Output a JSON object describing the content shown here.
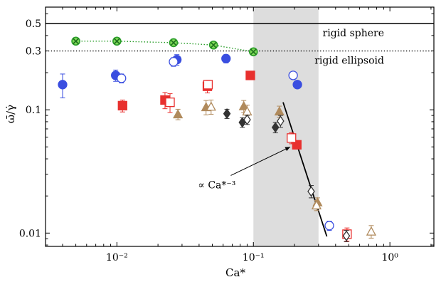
{
  "chart_data": {
    "type": "scatter",
    "title": "",
    "xlabel": "Ca*",
    "ylabel": "ω̄/γ̇",
    "xscale": "log",
    "yscale": "log",
    "xlim": [
      0.003,
      2.1
    ],
    "ylim": [
      0.0078,
      0.68
    ],
    "grid": false,
    "legend": "none",
    "x_ticks": [
      {
        "value": 0.01,
        "label": "10⁻²"
      },
      {
        "value": 0.1,
        "label": "10⁻¹"
      },
      {
        "value": 1,
        "label": "10⁰"
      }
    ],
    "y_ticks": [
      {
        "value": 0.5,
        "label": "0.5"
      },
      {
        "value": 0.3,
        "label": "0.3"
      },
      {
        "value": 0.1,
        "label": "0.1"
      },
      {
        "value": 0.01,
        "label": "0.01"
      }
    ],
    "shaded_region": {
      "x": [
        0.1,
        0.3
      ],
      "color": "#dddddd"
    },
    "reference_lines": [
      {
        "label": "rigid sphere",
        "y": 0.5,
        "style": "solid"
      },
      {
        "label": "rigid ellipsoid",
        "y": 0.3,
        "style": "dotted"
      }
    ],
    "power_law": {
      "x": [
        0.165,
        0.345
      ],
      "y": [
        0.115,
        0.0094
      ]
    },
    "annotation": {
      "text": "∝ Ca*⁻³",
      "arrow_from": [
        0.062,
        0.025
      ],
      "arrow_to": [
        0.2,
        0.052
      ]
    },
    "series": [
      {
        "marker": "crossed-circle",
        "color": "#2a9d2a",
        "line": "dotted",
        "x": [
          0.005,
          0.01,
          0.026,
          0.051,
          0.1
        ],
        "y": [
          0.36,
          0.36,
          0.35,
          0.335,
          0.295
        ]
      },
      {
        "marker": "circle",
        "filled": true,
        "color": "#3a4ee0",
        "x": [
          0.004,
          0.0098,
          0.0275,
          0.063,
          0.21
        ],
        "y": [
          0.16,
          0.19,
          0.255,
          0.26,
          0.16
        ],
        "err": [
          0.035,
          0.02,
          0.025,
          0.02,
          0.01
        ]
      },
      {
        "marker": "circle",
        "filled": false,
        "color": "#3a4ee0",
        "x": [
          0.0108,
          0.026,
          0.1955,
          0.36
        ],
        "y": [
          0.18,
          0.245,
          0.19,
          0.0115
        ],
        "err": [
          0.015,
          0.02,
          0.01,
          0.001
        ]
      },
      {
        "marker": "square",
        "filled": true,
        "color": "#e8302e",
        "x": [
          0.011,
          0.0225,
          0.046,
          0.095,
          0.208
        ],
        "y": [
          0.108,
          0.12,
          0.155,
          0.19,
          0.052
        ],
        "err": [
          0.012,
          0.018,
          0.018,
          0.006,
          0.004
        ]
      },
      {
        "marker": "square",
        "filled": false,
        "color": "#e8302e",
        "x": [
          0.0245,
          0.0465,
          0.19,
          0.485
        ],
        "y": [
          0.115,
          0.16,
          0.059,
          0.0098
        ],
        "err": [
          0.02,
          0.014,
          0.006,
          0.0012
        ]
      },
      {
        "marker": "triangle",
        "filled": true,
        "color": "#b08a5c",
        "x": [
          0.028,
          0.045,
          0.085,
          0.155,
          0.295
        ],
        "y": [
          0.092,
          0.105,
          0.107,
          0.097,
          0.0178
        ],
        "err": [
          0.009,
          0.014,
          0.012,
          0.01,
          0.0015
        ]
      },
      {
        "marker": "triangle",
        "filled": false,
        "color": "#b08a5c",
        "x": [
          0.049,
          0.09,
          0.29,
          0.73
        ],
        "y": [
          0.106,
          0.097,
          0.0168,
          0.0103
        ],
        "err": [
          0.014,
          0.012,
          0.0016,
          0.0012
        ]
      },
      {
        "marker": "diamond",
        "filled": true,
        "color": "#333333",
        "x": [
          0.064,
          0.083,
          0.145
        ],
        "y": [
          0.093,
          0.079,
          0.072
        ],
        "err": [
          0.008,
          0.007,
          0.007
        ]
      },
      {
        "marker": "diamond",
        "filled": false,
        "color": "#333333",
        "x": [
          0.09,
          0.158,
          0.265,
          0.48
        ],
        "y": [
          0.083,
          0.081,
          0.0218,
          0.0095
        ],
        "err": [
          0.007,
          0.009,
          0.0025,
          0.001
        ]
      }
    ]
  }
}
